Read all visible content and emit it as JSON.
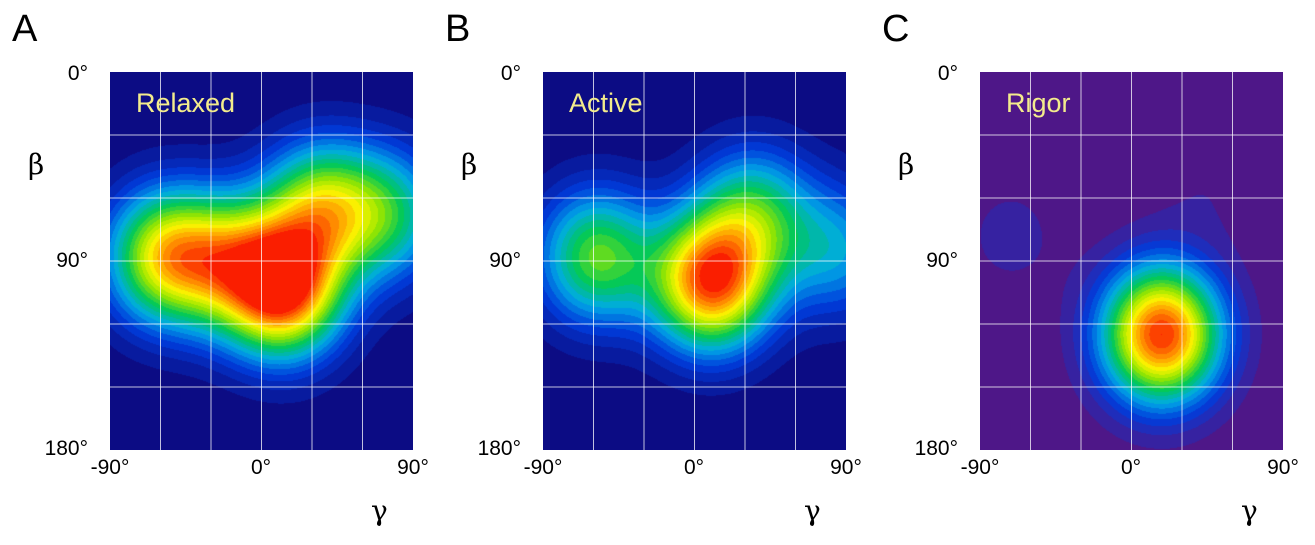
{
  "chart_data": [
    {
      "type": "heatmap",
      "panel": "A",
      "label": "Relaxed",
      "xlabel": "γ",
      "ylabel": "β",
      "xticks": [
        "-90°",
        "0°",
        "90°"
      ],
      "yticks": [
        "0°",
        "90°",
        "180°"
      ],
      "xlim": [
        -90,
        90
      ],
      "ylim": [
        0,
        180
      ],
      "background": "#0c0c84",
      "peaks": [
        {
          "gamma": 13,
          "beta": 103,
          "amplitude": 1.0
        },
        {
          "gamma": -57,
          "beta": 88,
          "amplitude": 0.72
        },
        {
          "gamma": 35,
          "beta": 65,
          "amplitude": 0.6
        },
        {
          "gamma": 75,
          "beta": 68,
          "amplitude": 0.42
        },
        {
          "gamma": -20,
          "beta": 90,
          "amplitude": 0.5
        }
      ]
    },
    {
      "type": "heatmap",
      "panel": "B",
      "label": "Active",
      "xlabel": "γ",
      "ylabel": "β",
      "xticks": [
        "-90°",
        "0°",
        "90°"
      ],
      "yticks": [
        "0°",
        "90°",
        "180°"
      ],
      "xlim": [
        -90,
        90
      ],
      "ylim": [
        0,
        180
      ],
      "background": "#0c0c84",
      "peaks": [
        {
          "gamma": 10,
          "beta": 100,
          "amplitude": 0.95
        },
        {
          "gamma": -58,
          "beta": 88,
          "amplitude": 0.55
        },
        {
          "gamma": 35,
          "beta": 68,
          "amplitude": 0.45
        },
        {
          "gamma": 85,
          "beta": 85,
          "amplitude": 0.3
        }
      ]
    },
    {
      "type": "heatmap",
      "panel": "C",
      "label": "Rigor",
      "xlabel": "γ",
      "ylabel": "β",
      "xticks": [
        "-90°",
        "0°",
        "90°"
      ],
      "yticks": [
        "0°",
        "90°",
        "180°"
      ],
      "xlim": [
        -90,
        90
      ],
      "ylim": [
        0,
        180
      ],
      "background": "#4e1788",
      "peaks": [
        {
          "gamma": 18,
          "beta": 125,
          "amplitude": 1.0
        },
        {
          "gamma": -72,
          "beta": 78,
          "amplitude": 0.06
        },
        {
          "gamma": 45,
          "beta": 55,
          "amplitude": 0.04
        }
      ]
    }
  ]
}
